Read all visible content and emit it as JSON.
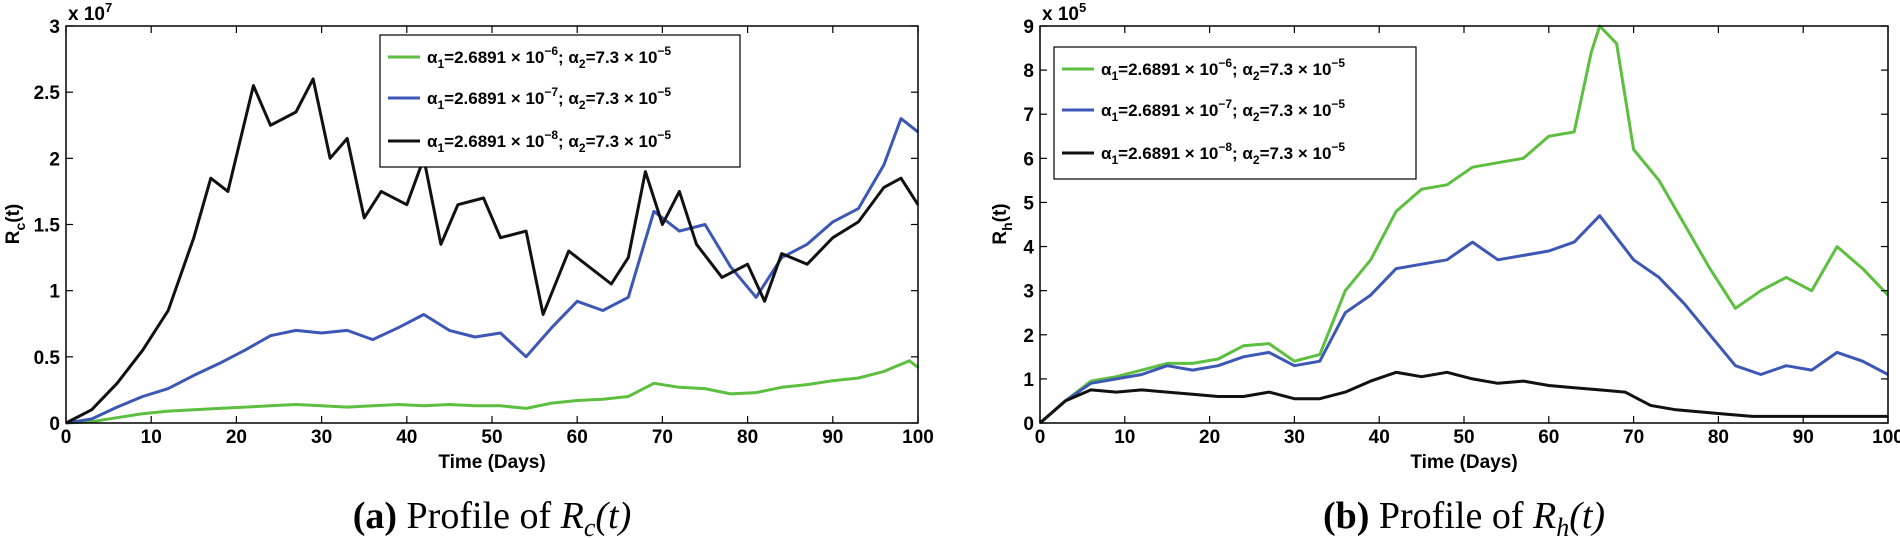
{
  "figure": {
    "panels": [
      {
        "caption_label": "(a)",
        "caption_text": "Profile of",
        "caption_symbol": "R",
        "caption_sub": "c",
        "caption_arg": "(t)"
      },
      {
        "caption_label": "(b)",
        "caption_text": "Profile of",
        "caption_symbol": "R",
        "caption_sub": "h",
        "caption_arg": "(t)"
      }
    ]
  },
  "legend": {
    "entries": [
      {
        "a1_label": "α",
        "a1_sub": "1",
        "a1_value": "=2.6891 × 10",
        "a1_exp": "−6",
        "a2_label": "; α",
        "a2_sub": "2",
        "a2_value": "=7.3 × 10",
        "a2_exp": "−5"
      },
      {
        "a1_label": "α",
        "a1_sub": "1",
        "a1_value": "=2.6891 × 10",
        "a1_exp": "−7",
        "a2_label": "; α",
        "a2_sub": "2",
        "a2_value": "=7.3 × 10",
        "a2_exp": "−5"
      },
      {
        "a1_label": "α",
        "a1_sub": "1",
        "a1_value": "=2.6891 × 10",
        "a1_exp": "−8",
        "a2_label": "; α",
        "a2_sub": "2",
        "a2_value": "=7.3 × 10",
        "a2_exp": "−5"
      }
    ]
  },
  "chart_data": [
    {
      "type": "line",
      "title": "",
      "xlabel": "Time (Days)",
      "ylabel": "R",
      "ylabel_sub": "c",
      "ylabel_arg": "(t)",
      "scale_text": "x 10",
      "scale_exp": "7",
      "xlim": [
        0,
        100
      ],
      "ylim": [
        0,
        3
      ],
      "xticks": [
        "0",
        "10",
        "20",
        "30",
        "40",
        "50",
        "60",
        "70",
        "80",
        "90",
        "100"
      ],
      "yticks": [
        "0",
        "0.5",
        "1",
        "1.5",
        "2",
        "2.5",
        "3"
      ],
      "legend_position": "top-right",
      "grid": false,
      "series": [
        {
          "name": "α1=2.6891×10−6; α2=7.3×10−5",
          "color": "#5cbf3f",
          "x": [
            0,
            3,
            6,
            9,
            12,
            15,
            18,
            21,
            24,
            27,
            30,
            33,
            36,
            39,
            42,
            45,
            48,
            51,
            54,
            57,
            60,
            63,
            66,
            69,
            72,
            75,
            78,
            81,
            84,
            87,
            90,
            93,
            96,
            99,
            100
          ],
          "y": [
            0,
            0.01,
            0.04,
            0.07,
            0.09,
            0.1,
            0.11,
            0.12,
            0.13,
            0.14,
            0.13,
            0.12,
            0.13,
            0.14,
            0.13,
            0.14,
            0.13,
            0.13,
            0.11,
            0.15,
            0.17,
            0.18,
            0.2,
            0.3,
            0.27,
            0.26,
            0.22,
            0.23,
            0.27,
            0.29,
            0.32,
            0.34,
            0.39,
            0.47,
            0.42
          ]
        },
        {
          "name": "α1=2.6891×10−7; α2=7.3×10−5",
          "color": "#3c57b4",
          "x": [
            0,
            3,
            6,
            9,
            12,
            15,
            18,
            21,
            24,
            27,
            30,
            33,
            36,
            39,
            42,
            45,
            48,
            51,
            54,
            57,
            60,
            63,
            66,
            69,
            72,
            75,
            78,
            81,
            84,
            87,
            90,
            93,
            96,
            98,
            100
          ],
          "y": [
            0,
            0.03,
            0.12,
            0.2,
            0.26,
            0.36,
            0.45,
            0.55,
            0.66,
            0.7,
            0.68,
            0.7,
            0.63,
            0.72,
            0.82,
            0.7,
            0.65,
            0.68,
            0.5,
            0.72,
            0.92,
            0.85,
            0.95,
            1.6,
            1.45,
            1.5,
            1.18,
            0.95,
            1.25,
            1.35,
            1.52,
            1.62,
            1.95,
            2.3,
            2.2
          ]
        },
        {
          "name": "α1=2.6891×10−8; α2=7.3×10−5",
          "color": "#111111",
          "x": [
            0,
            3,
            6,
            9,
            12,
            15,
            17,
            19,
            22,
            24,
            27,
            29,
            31,
            33,
            35,
            37,
            40,
            42,
            44,
            46,
            49,
            51,
            54,
            56,
            59,
            61,
            64,
            66,
            68,
            70,
            72,
            74,
            77,
            80,
            82,
            84,
            87,
            90,
            93,
            96,
            98,
            100
          ],
          "y": [
            0,
            0.1,
            0.3,
            0.55,
            0.85,
            1.4,
            1.85,
            1.75,
            2.55,
            2.25,
            2.35,
            2.6,
            2.0,
            2.15,
            1.55,
            1.75,
            1.65,
            2.0,
            1.35,
            1.65,
            1.7,
            1.4,
            1.45,
            0.82,
            1.3,
            1.2,
            1.05,
            1.25,
            1.9,
            1.5,
            1.75,
            1.35,
            1.1,
            1.2,
            0.92,
            1.28,
            1.2,
            1.4,
            1.52,
            1.78,
            1.85,
            1.65
          ]
        }
      ]
    },
    {
      "type": "line",
      "title": "",
      "xlabel": "Time (Days)",
      "ylabel": "R",
      "ylabel_sub": "h",
      "ylabel_arg": "(t)",
      "scale_text": "x 10",
      "scale_exp": "5",
      "xlim": [
        0,
        100
      ],
      "ylim": [
        0,
        9
      ],
      "xticks": [
        "0",
        "10",
        "20",
        "30",
        "40",
        "50",
        "60",
        "70",
        "80",
        "90",
        "100"
      ],
      "yticks": [
        "0",
        "1",
        "2",
        "3",
        "4",
        "5",
        "6",
        "7",
        "8",
        "9"
      ],
      "legend_position": "top-left",
      "grid": false,
      "series": [
        {
          "name": "α1=2.6891×10−6; α2=7.3×10−5",
          "color": "#5cbf3f",
          "x": [
            0,
            3,
            6,
            9,
            12,
            15,
            18,
            21,
            24,
            27,
            30,
            33,
            36,
            39,
            42,
            45,
            48,
            51,
            54,
            57,
            60,
            63,
            65,
            66,
            68,
            70,
            73,
            76,
            79,
            82,
            85,
            88,
            91,
            94,
            97,
            100
          ],
          "y": [
            0,
            0.5,
            0.95,
            1.05,
            1.2,
            1.35,
            1.35,
            1.45,
            1.75,
            1.8,
            1.4,
            1.55,
            3.0,
            3.7,
            4.8,
            5.3,
            5.4,
            5.8,
            5.9,
            6.0,
            6.5,
            6.6,
            8.4,
            9.0,
            8.6,
            6.2,
            5.5,
            4.5,
            3.5,
            2.6,
            3.0,
            3.3,
            3.0,
            4.0,
            3.5,
            2.9
          ]
        },
        {
          "name": "α1=2.6891×10−7; α2=7.3×10−5",
          "color": "#3c57b4",
          "x": [
            0,
            3,
            6,
            9,
            12,
            15,
            18,
            21,
            24,
            27,
            30,
            33,
            36,
            39,
            42,
            45,
            48,
            51,
            54,
            57,
            60,
            63,
            66,
            68,
            70,
            73,
            76,
            79,
            82,
            85,
            88,
            91,
            94,
            97,
            100
          ],
          "y": [
            0,
            0.5,
            0.9,
            1.0,
            1.1,
            1.3,
            1.2,
            1.3,
            1.5,
            1.6,
            1.3,
            1.4,
            2.5,
            2.9,
            3.5,
            3.6,
            3.7,
            4.1,
            3.7,
            3.8,
            3.9,
            4.1,
            4.7,
            4.2,
            3.7,
            3.3,
            2.7,
            2.0,
            1.3,
            1.1,
            1.3,
            1.2,
            1.6,
            1.4,
            1.1
          ]
        },
        {
          "name": "α1=2.6891×10−8; α2=7.3×10−5",
          "color": "#111111",
          "x": [
            0,
            3,
            6,
            9,
            12,
            15,
            18,
            21,
            24,
            27,
            30,
            33,
            36,
            39,
            42,
            45,
            48,
            51,
            54,
            57,
            60,
            63,
            66,
            69,
            72,
            75,
            78,
            81,
            84,
            87,
            90,
            93,
            96,
            100
          ],
          "y": [
            0,
            0.5,
            0.75,
            0.7,
            0.75,
            0.7,
            0.65,
            0.6,
            0.6,
            0.7,
            0.55,
            0.55,
            0.7,
            0.95,
            1.15,
            1.05,
            1.15,
            1.0,
            0.9,
            0.95,
            0.85,
            0.8,
            0.75,
            0.7,
            0.4,
            0.3,
            0.25,
            0.2,
            0.15,
            0.15,
            0.15,
            0.15,
            0.15,
            0.15
          ]
        }
      ]
    }
  ]
}
